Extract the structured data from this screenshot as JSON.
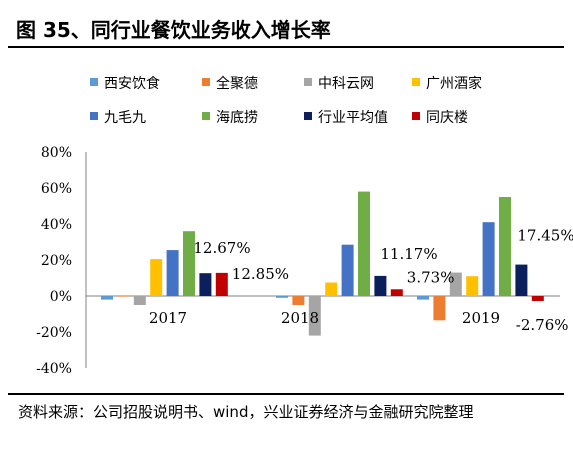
{
  "title": "图 35、同行业餐饮业务收入增长率",
  "source": "资料来源：公司招股说明书、wind，兴业证券经济与金融研究院整理",
  "chart_data": {
    "type": "bar",
    "title": "",
    "xlabel": "",
    "ylabel": "",
    "ylim": [
      -40,
      80
    ],
    "yticks": [
      80,
      60,
      40,
      20,
      0,
      -20,
      -40
    ],
    "ytick_labels": [
      "80%",
      "60%",
      "40%",
      "20%",
      "0%",
      "-20%",
      "-40%"
    ],
    "categories": [
      "2017",
      "2018",
      "2019"
    ],
    "series": [
      {
        "name": "西安饮食",
        "color": "#5b9bd5",
        "values": [
          -2,
          -1,
          -2
        ]
      },
      {
        "name": "全聚德",
        "color": "#ed7d31",
        "values": [
          0,
          -5,
          -13.5
        ]
      },
      {
        "name": "中科云网",
        "color": "#a5a5a5",
        "values": [
          -5,
          -22,
          13
        ]
      },
      {
        "name": "广州酒家",
        "color": "#ffc000",
        "values": [
          20.5,
          7.5,
          11
        ]
      },
      {
        "name": "九毛九",
        "color": "#4472c4",
        "values": [
          25.5,
          28.5,
          41
        ]
      },
      {
        "name": "海底捞",
        "color": "#70ad47",
        "values": [
          36,
          58,
          55
        ]
      },
      {
        "name": "行业平均值",
        "color": "#0b1f5c",
        "values": [
          12.67,
          11.17,
          17.45
        ]
      },
      {
        "name": "同庆楼",
        "color": "#c00000",
        "values": [
          12.85,
          3.73,
          -2.76
        ]
      }
    ],
    "data_labels": [
      {
        "category": "2017",
        "series": "行业平均值",
        "text": "12.67%"
      },
      {
        "category": "2017",
        "series": "同庆楼",
        "text": "12.85%"
      },
      {
        "category": "2018",
        "series": "行业平均值",
        "text": "11.17%"
      },
      {
        "category": "2018",
        "series": "同庆楼",
        "text": "3.73%"
      },
      {
        "category": "2019",
        "series": "行业平均值",
        "text": "17.45%"
      },
      {
        "category": "2019",
        "series": "同庆楼",
        "text": "-2.76%"
      }
    ],
    "legend_position": "top",
    "grid": false
  }
}
